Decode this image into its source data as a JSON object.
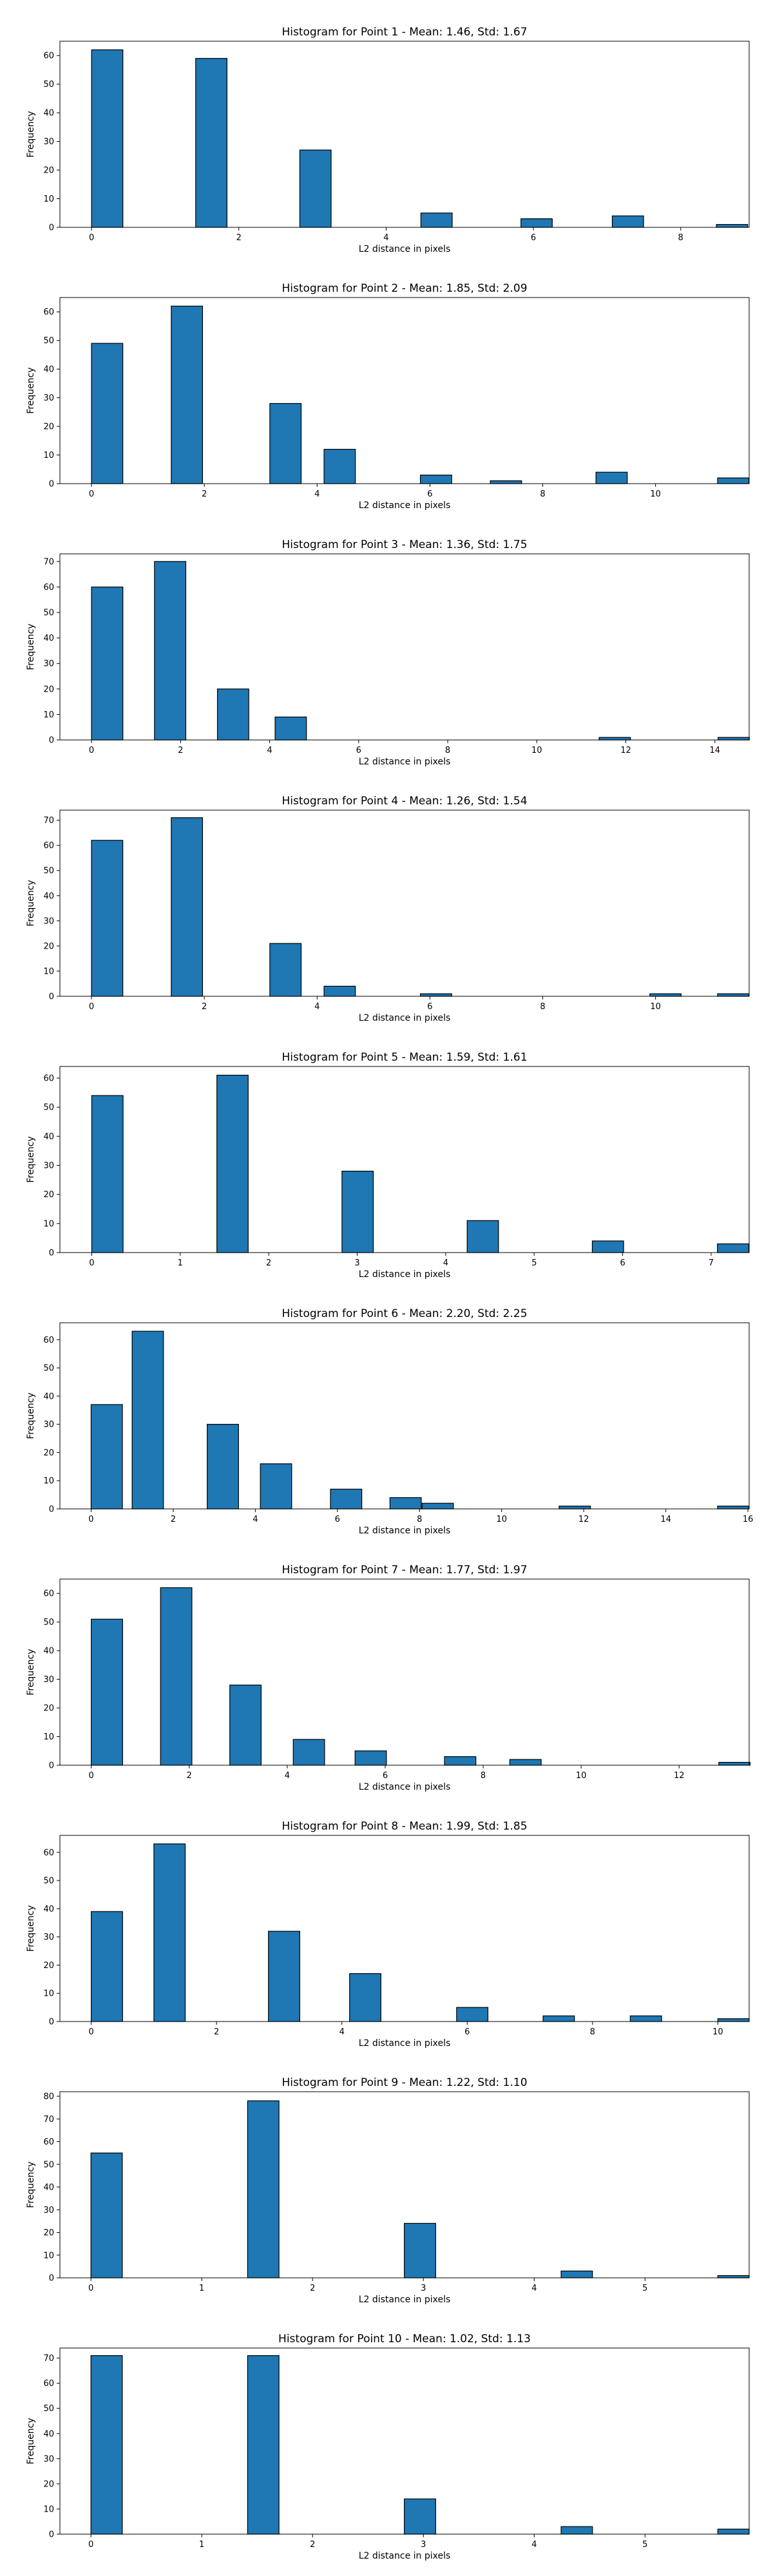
{
  "chart_data": [
    {
      "type": "bar",
      "title": "Histogram for Point 1 - Mean: 1.46, Std: 1.67",
      "xlabel": "L2 distance in pixels",
      "ylabel": "Frequency",
      "xlim": [
        -0.43,
        8.93
      ],
      "ylim": [
        0,
        65
      ],
      "xticks": [
        0,
        2,
        4,
        6,
        8
      ],
      "yticks": [
        0,
        10,
        20,
        30,
        40,
        50,
        60
      ],
      "bar_width": 0.425,
      "bins": [
        {
          "x": 0.0,
          "value": 62
        },
        {
          "x": 1.414,
          "value": 59
        },
        {
          "x": 2.828,
          "value": 27
        },
        {
          "x": 4.472,
          "value": 5
        },
        {
          "x": 5.831,
          "value": 3
        },
        {
          "x": 7.071,
          "value": 4
        },
        {
          "x": 8.485,
          "value": 1
        }
      ]
    },
    {
      "type": "bar",
      "title": "Histogram for Point 2 - Mean: 1.85, Std: 2.09",
      "xlabel": "L2 distance in pixels",
      "ylabel": "Frequency",
      "xlim": [
        -0.56,
        11.66
      ],
      "ylim": [
        0,
        65
      ],
      "xticks": [
        0,
        2,
        4,
        6,
        8,
        10
      ],
      "yticks": [
        0,
        10,
        20,
        30,
        40,
        50,
        60
      ],
      "bar_width": 0.555,
      "bins": [
        {
          "x": 0.0,
          "value": 49
        },
        {
          "x": 1.414,
          "value": 62
        },
        {
          "x": 3.162,
          "value": 28
        },
        {
          "x": 4.123,
          "value": 12
        },
        {
          "x": 5.831,
          "value": 3
        },
        {
          "x": 7.071,
          "value": 1
        },
        {
          "x": 8.944,
          "value": 4
        },
        {
          "x": 11.1,
          "value": 2
        }
      ]
    },
    {
      "type": "bar",
      "title": "Histogram for Point 3 - Mean: 1.36, Std: 1.75",
      "xlabel": "L2 distance in pixels",
      "ylabel": "Frequency",
      "xlim": [
        -0.71,
        14.77
      ],
      "ylim": [
        0,
        73
      ],
      "xticks": [
        0,
        2,
        4,
        6,
        8,
        10,
        12,
        14
      ],
      "yticks": [
        0,
        10,
        20,
        30,
        40,
        50,
        60,
        70
      ],
      "bar_width": 0.704,
      "bins": [
        {
          "x": 0.0,
          "value": 60
        },
        {
          "x": 1.414,
          "value": 70
        },
        {
          "x": 2.828,
          "value": 20
        },
        {
          "x": 4.123,
          "value": 9
        },
        {
          "x": 11.4,
          "value": 1
        },
        {
          "x": 14.07,
          "value": 1
        }
      ]
    },
    {
      "type": "bar",
      "title": "Histogram for Point 4 - Mean: 1.26, Std: 1.54",
      "xlabel": "L2 distance in pixels",
      "ylabel": "Frequency",
      "xlim": [
        -0.56,
        11.66
      ],
      "ylim": [
        0,
        74
      ],
      "xticks": [
        0,
        2,
        4,
        6,
        8,
        10
      ],
      "yticks": [
        0,
        10,
        20,
        30,
        40,
        50,
        60,
        70
      ],
      "bar_width": 0.555,
      "bins": [
        {
          "x": 0.0,
          "value": 62
        },
        {
          "x": 1.414,
          "value": 71
        },
        {
          "x": 3.162,
          "value": 21
        },
        {
          "x": 4.123,
          "value": 4
        },
        {
          "x": 5.831,
          "value": 1
        },
        {
          "x": 9.899,
          "value": 1
        },
        {
          "x": 11.1,
          "value": 1
        }
      ]
    },
    {
      "type": "bar",
      "title": "Histogram for Point 5 - Mean: 1.59, Std: 1.61",
      "xlabel": "L2 distance in pixels",
      "ylabel": "Frequency",
      "xlim": [
        -0.36,
        7.43
      ],
      "ylim": [
        0,
        64
      ],
      "xticks": [
        0,
        1,
        2,
        3,
        4,
        5,
        6,
        7
      ],
      "yticks": [
        0,
        10,
        20,
        30,
        40,
        50,
        60
      ],
      "bar_width": 0.354,
      "bins": [
        {
          "x": 0.0,
          "value": 54
        },
        {
          "x": 1.414,
          "value": 61
        },
        {
          "x": 2.828,
          "value": 28
        },
        {
          "x": 4.243,
          "value": 11
        },
        {
          "x": 5.657,
          "value": 4
        },
        {
          "x": 7.071,
          "value": 3
        }
      ]
    },
    {
      "type": "bar",
      "title": "Histogram for Point 6 - Mean: 2.20, Std: 2.25",
      "xlabel": "L2 distance in pixels",
      "ylabel": "Frequency",
      "xlim": [
        -0.76,
        16.03
      ],
      "ylim": [
        0,
        66
      ],
      "xticks": [
        0,
        2,
        4,
        6,
        8,
        10,
        12,
        14,
        16
      ],
      "yticks": [
        0,
        10,
        20,
        30,
        40,
        50,
        60
      ],
      "bar_width": 0.763,
      "bins": [
        {
          "x": 0.0,
          "value": 37
        },
        {
          "x": 1.0,
          "value": 63
        },
        {
          "x": 2.828,
          "value": 30
        },
        {
          "x": 4.123,
          "value": 16
        },
        {
          "x": 5.831,
          "value": 7
        },
        {
          "x": 7.28,
          "value": 4
        },
        {
          "x": 8.062,
          "value": 2
        },
        {
          "x": 11.4,
          "value": 1
        },
        {
          "x": 15.26,
          "value": 1
        }
      ]
    },
    {
      "type": "bar",
      "title": "Histogram for Point 7 - Mean: 1.77, Std: 1.97",
      "xlabel": "L2 distance in pixels",
      "ylabel": "Frequency",
      "xlim": [
        -0.64,
        13.43
      ],
      "ylim": [
        0,
        65
      ],
      "xticks": [
        0,
        2,
        4,
        6,
        8,
        10,
        12
      ],
      "yticks": [
        0,
        10,
        20,
        30,
        40,
        50,
        60
      ],
      "bar_width": 0.64,
      "bins": [
        {
          "x": 0.0,
          "value": 51
        },
        {
          "x": 1.414,
          "value": 62
        },
        {
          "x": 2.828,
          "value": 28
        },
        {
          "x": 4.123,
          "value": 9
        },
        {
          "x": 5.385,
          "value": 5
        },
        {
          "x": 7.211,
          "value": 3
        },
        {
          "x": 8.544,
          "value": 2
        },
        {
          "x": 12.81,
          "value": 1
        }
      ]
    },
    {
      "type": "bar",
      "title": "Histogram for Point 8 - Mean: 1.99, Std: 1.85",
      "xlabel": "L2 distance in pixels",
      "ylabel": "Frequency",
      "xlim": [
        -0.5,
        10.5
      ],
      "ylim": [
        0,
        66
      ],
      "xticks": [
        0,
        2,
        4,
        6,
        8,
        10
      ],
      "yticks": [
        0,
        10,
        20,
        30,
        40,
        50,
        60
      ],
      "bar_width": 0.5,
      "bins": [
        {
          "x": 0.0,
          "value": 39
        },
        {
          "x": 1.0,
          "value": 63
        },
        {
          "x": 2.828,
          "value": 32
        },
        {
          "x": 4.123,
          "value": 17
        },
        {
          "x": 5.831,
          "value": 5
        },
        {
          "x": 7.211,
          "value": 2
        },
        {
          "x": 8.602,
          "value": 2
        },
        {
          "x": 10.0,
          "value": 1
        }
      ]
    },
    {
      "type": "bar",
      "title": "Histogram for Point 9 - Mean: 1.22, Std: 1.10",
      "xlabel": "L2 distance in pixels",
      "ylabel": "Frequency",
      "xlim": [
        -0.28,
        5.94
      ],
      "ylim": [
        0,
        82
      ],
      "xticks": [
        0,
        1,
        2,
        3,
        4,
        5
      ],
      "yticks": [
        0,
        10,
        20,
        30,
        40,
        50,
        60,
        70,
        80
      ],
      "bar_width": 0.283,
      "bins": [
        {
          "x": 0.0,
          "value": 55
        },
        {
          "x": 1.414,
          "value": 78
        },
        {
          "x": 2.828,
          "value": 24
        },
        {
          "x": 4.243,
          "value": 3
        },
        {
          "x": 5.657,
          "value": 1
        }
      ]
    },
    {
      "type": "bar",
      "title": "Histogram for Point 10 - Mean: 1.02, Std: 1.13",
      "xlabel": "L2 distance in pixels",
      "ylabel": "Frequency",
      "xlim": [
        -0.28,
        5.94
      ],
      "ylim": [
        0,
        74
      ],
      "xticks": [
        0,
        1,
        2,
        3,
        4,
        5
      ],
      "yticks": [
        0,
        10,
        20,
        30,
        40,
        50,
        60,
        70
      ],
      "bar_width": 0.283,
      "bins": [
        {
          "x": 0.0,
          "value": 71
        },
        {
          "x": 1.414,
          "value": 71
        },
        {
          "x": 2.828,
          "value": 14
        },
        {
          "x": 4.243,
          "value": 3
        },
        {
          "x": 5.657,
          "value": 2
        }
      ]
    }
  ],
  "style": {
    "bar_fill": "#1f77b4",
    "bar_edge": "#000000",
    "axis_color": "#000000",
    "background": "#ffffff"
  }
}
